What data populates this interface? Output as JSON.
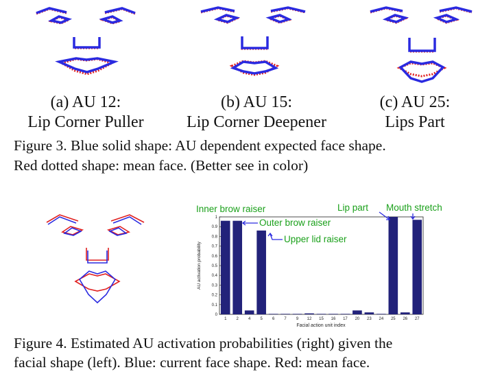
{
  "figure3": {
    "panels": [
      {
        "label": "(a) AU 12:",
        "name": "Lip Corner Puller"
      },
      {
        "label": "(b) AU 15:",
        "name": "Lip Corner Deepener"
      },
      {
        "label": "(c) AU 25:",
        "name": "Lips Part"
      }
    ],
    "caption_line1": "Figure 3. Blue solid shape: AU dependent expected face shape.",
    "caption_line2": "Red dotted shape: mean face. (Better see in color)"
  },
  "figure4": {
    "annotations": {
      "inner_brow": "Inner brow raiser",
      "outer_brow": "Outer brow raiser",
      "upper_lid": "Upper lid raiser",
      "lip_part": "Lip part",
      "mouth_stretch": "Mouth stretch"
    },
    "caption_line1": "Figure 4. Estimated AU activation probabilities (right) given the",
    "caption_line2": "facial shape (left). Blue: current face shape. Red: mean face."
  },
  "colors": {
    "blue": "#2a2ae0",
    "red": "#e02020",
    "bar": "#22227a",
    "annotation": "#1aa01a"
  },
  "chart_data": {
    "type": "bar",
    "categories": [
      "1",
      "2",
      "4",
      "5",
      "6",
      "7",
      "9",
      "12",
      "15",
      "16",
      "17",
      "20",
      "23",
      "24",
      "25",
      "26",
      "27"
    ],
    "values": [
      0.96,
      0.96,
      0.04,
      0.86,
      0.005,
      0.005,
      0.005,
      0.01,
      0.005,
      0.005,
      0.005,
      0.04,
      0.02,
      0.005,
      1.0,
      0.02,
      0.97
    ],
    "ylim": [
      0,
      1
    ],
    "yticks": [
      "0",
      "0.1",
      "0.2",
      "0.3",
      "0.4",
      "0.5",
      "0.6",
      "0.7",
      "0.8",
      "0.9",
      "1"
    ],
    "xlabel": "Facial action unit index",
    "ylabel": "AU activation probability"
  }
}
